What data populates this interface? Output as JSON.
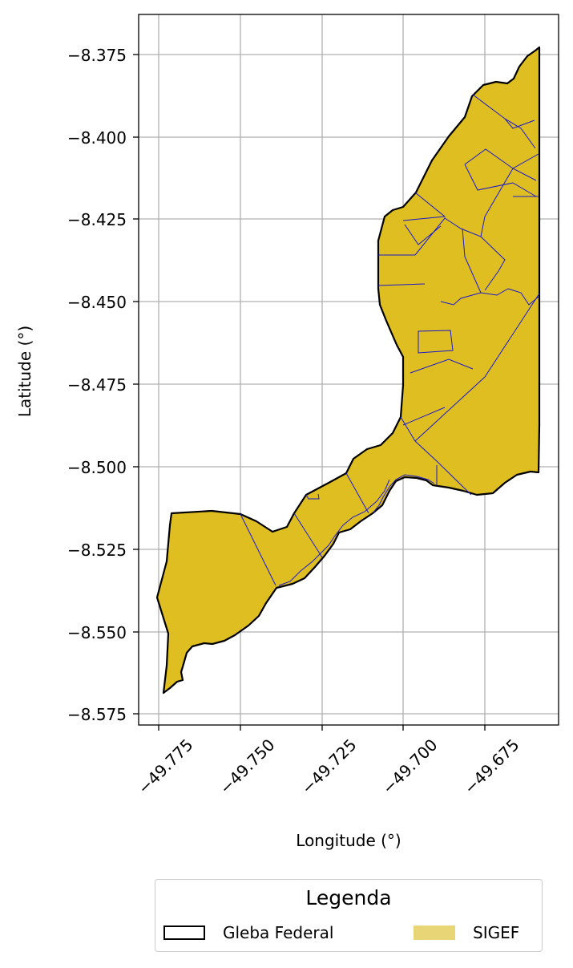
{
  "chart_data": {
    "type": "map",
    "xlabel": "Longitude (°)",
    "ylabel": "Latitude (°)",
    "x_ticks": [
      -49.775,
      -49.75,
      -49.725,
      -49.7,
      -49.675
    ],
    "y_ticks": [
      -8.375,
      -8.4,
      -8.425,
      -8.45,
      -8.475,
      -8.5,
      -8.525,
      -8.55,
      -8.575
    ],
    "xlim": [
      -49.781,
      -49.652
    ],
    "ylim": [
      -8.578,
      -8.363
    ],
    "grid": true,
    "layers": [
      {
        "name": "Gleba Federal",
        "style": "outline",
        "edge_color": "#000000"
      },
      {
        "name": "SIGEF",
        "style": "filled parcels",
        "fill_color": "#dfbe22",
        "edge_color": "#1a1acc"
      }
    ]
  },
  "x_tick_labels": [
    "−49.775",
    "−49.750",
    "−49.725",
    "−49.700",
    "−49.675"
  ],
  "y_tick_labels": [
    "−8.375",
    "−8.400",
    "−8.425",
    "−8.450",
    "−8.475",
    "−8.500",
    "−8.525",
    "−8.550",
    "−8.575"
  ],
  "legend": {
    "title": "Legenda",
    "entries": [
      "Gleba Federal",
      "SIGEF"
    ]
  }
}
